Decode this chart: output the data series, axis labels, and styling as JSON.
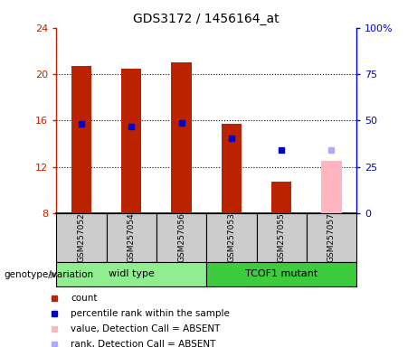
{
  "title": "GDS3172 / 1456164_at",
  "samples": [
    "GSM257052",
    "GSM257054",
    "GSM257056",
    "GSM257053",
    "GSM257055",
    "GSM257057"
  ],
  "groups": [
    {
      "name": "widl type",
      "color": "#90ee90",
      "start": 0,
      "end": 2
    },
    {
      "name": "TCOF1 mutant",
      "color": "#3dcc3d",
      "start": 3,
      "end": 5
    }
  ],
  "bar_bottom": 8,
  "count_values": [
    20.7,
    20.5,
    21.0,
    15.7,
    10.7,
    null
  ],
  "count_color": "#bb2200",
  "absent_bar_values": [
    null,
    null,
    null,
    null,
    null,
    12.5
  ],
  "absent_bar_color": "#ffb6c1",
  "percentile_values": [
    15.7,
    15.5,
    15.8,
    14.5,
    13.5,
    null
  ],
  "percentile_color": "#0000cc",
  "absent_rank_values": [
    null,
    null,
    null,
    null,
    null,
    13.5
  ],
  "absent_rank_color": "#aaaaff",
  "ylim_left": [
    8,
    24
  ],
  "ylim_right": [
    0,
    100
  ],
  "yticks_left": [
    8,
    12,
    16,
    20,
    24
  ],
  "yticks_right": [
    0,
    25,
    50,
    75,
    100
  ],
  "ytick_labels_right": [
    "0",
    "25",
    "50",
    "75",
    "100%"
  ],
  "bar_width": 0.4,
  "plot_bg": "#ffffff",
  "label_bg": "#cccccc",
  "legend_items": [
    {
      "label": "count",
      "color": "#bb2200"
    },
    {
      "label": "percentile rank within the sample",
      "color": "#0000cc"
    },
    {
      "label": "value, Detection Call = ABSENT",
      "color": "#ffb6c1"
    },
    {
      "label": "rank, Detection Call = ABSENT",
      "color": "#aaaaff"
    }
  ]
}
